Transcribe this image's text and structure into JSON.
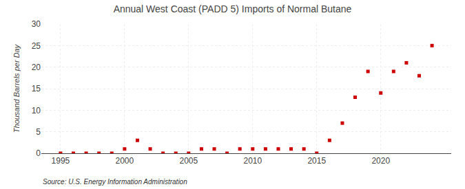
{
  "chart_data": {
    "type": "scatter",
    "title": "Annual West Coast (PADD 5) Imports of Normal Butane",
    "ylabel": "Thousand Barrels per Day",
    "source": "Source: U.S. Energy Information Administration",
    "color": "#cc0000",
    "marker": "square",
    "grid": true,
    "xlim": [
      1993.5,
      2025.5
    ],
    "ylim": [
      0,
      30
    ],
    "xticks": [
      1995,
      2000,
      2005,
      2010,
      2015,
      2020
    ],
    "yticks": [
      0,
      5,
      10,
      15,
      20,
      25,
      30
    ],
    "x": [
      1995,
      1996,
      1997,
      1998,
      1999,
      2000,
      2001,
      2002,
      2003,
      2004,
      2005,
      2006,
      2007,
      2008,
      2009,
      2010,
      2011,
      2012,
      2013,
      2014,
      2015,
      2016,
      2017,
      2018,
      2019,
      2020,
      2021,
      2022,
      2023,
      2024
    ],
    "values": [
      0.0,
      0.0,
      0.0,
      0.0,
      0.0,
      1.0,
      3.0,
      1.0,
      0.0,
      0.0,
      0.0,
      1.0,
      1.0,
      0.0,
      1.0,
      1.0,
      1.0,
      1.0,
      1.0,
      1.0,
      0.0,
      3.0,
      7.0,
      13.0,
      19.0,
      14.0,
      19.0,
      21.0,
      18.0,
      25.0
    ]
  }
}
